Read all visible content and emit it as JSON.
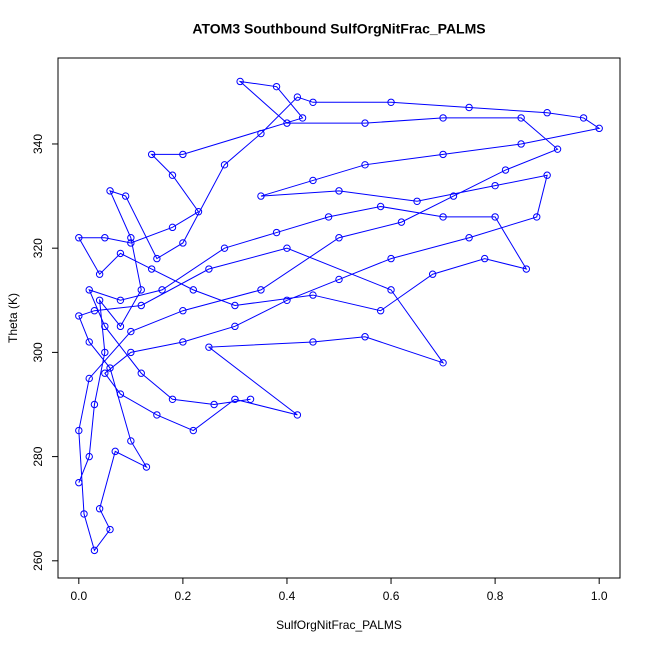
{
  "chart_data": {
    "type": "line",
    "title": "ATOM3 Southbound SulfOrgNitFrac_PALMS",
    "x_label": "SulfOrgNitFrac_PALMS",
    "y_label": "Theta (K)",
    "color": "#0000ff",
    "marker": "circle",
    "xlim": [
      -0.04,
      1.04
    ],
    "ylim": [
      256.7,
      356.5
    ],
    "xticks": [
      {
        "value": 0,
        "label": "0.0"
      },
      {
        "value": 0.2,
        "label": "0.2"
      },
      {
        "value": 0.4,
        "label": "0.4"
      },
      {
        "value": 0.6,
        "label": "0.6"
      },
      {
        "value": 0.8,
        "label": "0.8"
      },
      {
        "value": 1,
        "label": "1.0"
      }
    ],
    "yticks": [
      260,
      280,
      300,
      320,
      340
    ],
    "x": [
      0.0,
      0.02,
      0.03,
      0.05,
      0.04,
      0.08,
      0.12,
      0.1,
      0.06,
      0.09,
      0.15,
      0.2,
      0.28,
      0.35,
      0.42,
      0.45,
      0.6,
      0.75,
      0.9,
      0.97,
      1.0,
      0.85,
      0.7,
      0.55,
      0.45,
      0.35,
      0.5,
      0.65,
      0.8,
      0.9,
      0.88,
      0.75,
      0.6,
      0.5,
      0.4,
      0.3,
      0.2,
      0.1,
      0.05,
      0.08,
      0.15,
      0.22,
      0.3,
      0.42,
      0.25,
      0.45,
      0.55,
      0.7,
      0.6,
      0.4,
      0.25,
      0.12,
      0.03,
      0.0,
      0.02,
      0.06,
      0.1,
      0.13,
      0.07,
      0.04,
      0.06,
      0.03,
      0.01,
      0.0,
      0.02,
      0.1,
      0.2,
      0.35,
      0.5,
      0.62,
      0.72,
      0.82,
      0.92,
      0.85,
      0.7,
      0.55,
      0.4,
      0.31,
      0.38,
      0.43,
      0.2,
      0.14,
      0.18,
      0.23,
      0.18,
      0.1,
      0.05,
      0.0,
      0.04,
      0.08,
      0.14,
      0.22,
      0.3,
      0.45,
      0.58,
      0.68,
      0.78,
      0.86,
      0.8,
      0.7,
      0.58,
      0.48,
      0.38,
      0.28,
      0.16,
      0.08,
      0.02,
      0.05,
      0.12,
      0.18,
      0.26,
      0.33
    ],
    "values": [
      275,
      280,
      290,
      300,
      310,
      305,
      312,
      322,
      331,
      330,
      318,
      321,
      336,
      342,
      349,
      348,
      348,
      347,
      346,
      345,
      343,
      340,
      338,
      336,
      333,
      330,
      331,
      329,
      332,
      334,
      326,
      322,
      318,
      314,
      310,
      305,
      302,
      300,
      296,
      292,
      288,
      285,
      291,
      288,
      301,
      302,
      303,
      298,
      312,
      320,
      316,
      309,
      308,
      307,
      302,
      297,
      283,
      278,
      281,
      270,
      266,
      262,
      269,
      285,
      295,
      304,
      308,
      312,
      322,
      325,
      330,
      335,
      339,
      345,
      345,
      344,
      344,
      352,
      351,
      345,
      338,
      338,
      334,
      327,
      324,
      321,
      322,
      322,
      315,
      319,
      316,
      312,
      309,
      311,
      308,
      315,
      318,
      316,
      326,
      326,
      328,
      326,
      323,
      320,
      312,
      310,
      312,
      305,
      296,
      291,
      290,
      291
    ]
  }
}
